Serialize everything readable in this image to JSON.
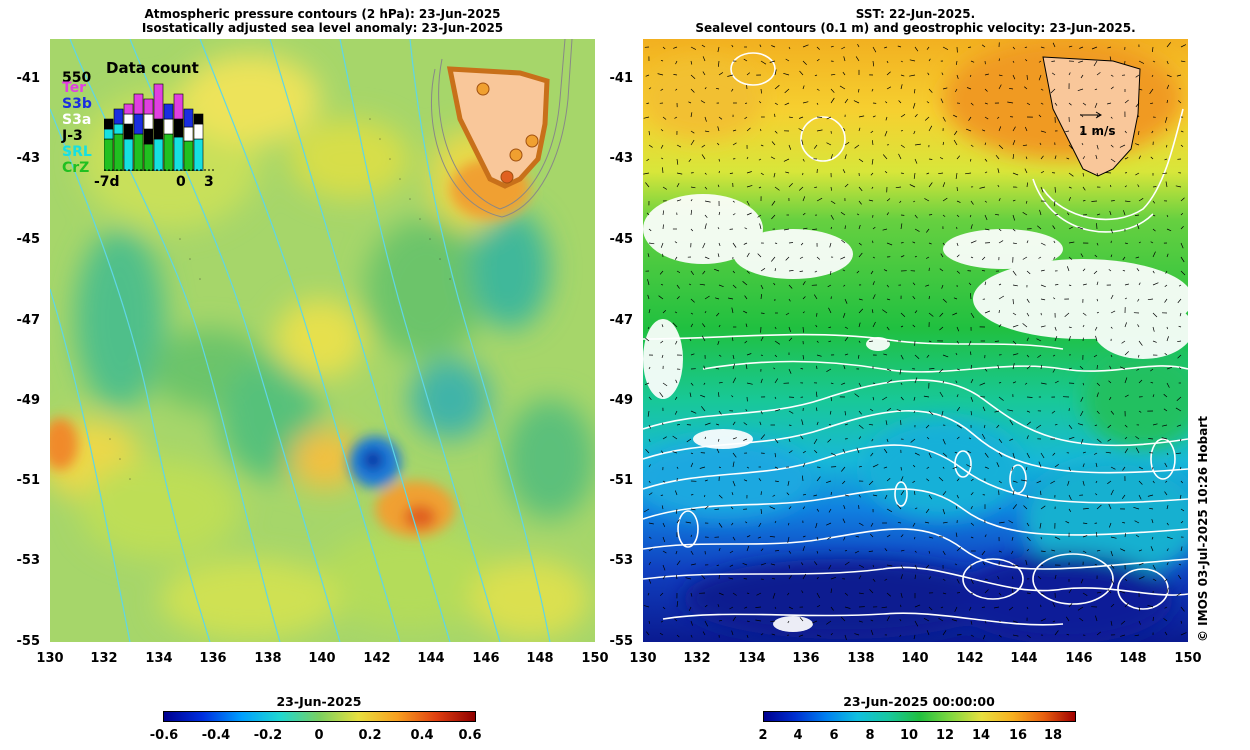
{
  "left_panel": {
    "title_line1": "Atmospheric pressure contours (2 hPa): 23-Jun-2025",
    "title_line2": "Isostatically adjusted sea level anomaly: 23-Jun-2025",
    "y_ticks": [
      "-41",
      "-43",
      "-45",
      "-47",
      "-49",
      "-51",
      "-53",
      "-55"
    ],
    "x_ticks": [
      "130",
      "132",
      "134",
      "136",
      "138",
      "140",
      "142",
      "144",
      "146",
      "148",
      "150"
    ],
    "legend": {
      "title": "Data count",
      "max_label": "550",
      "satellites": [
        {
          "name": "Ter",
          "color": "#e040e0"
        },
        {
          "name": "S3b",
          "color": "#1a2ee0"
        },
        {
          "name": "S3a",
          "color": "#ffffff"
        },
        {
          "name": "J-3",
          "color": "#000000"
        },
        {
          "name": "SRL",
          "color": "#16e0e0"
        },
        {
          "name": "CrZ",
          "color": "#20c020"
        }
      ],
      "x_labels": [
        "-7d",
        "0",
        "3"
      ]
    },
    "colorbar": {
      "title": "23-Jun-2025",
      "ticks": [
        "-0.6",
        "-0.4",
        "-0.2",
        "0",
        "0.2",
        "0.4",
        "0.6"
      ]
    }
  },
  "right_panel": {
    "title_line1": "SST: 22-Jun-2025.",
    "title_line2": "Sealevel contours (0.1 m) and geostrophic velocity: 23-Jun-2025.",
    "y_ticks": [
      "-41",
      "-43",
      "-45",
      "-47",
      "-49",
      "-51",
      "-53",
      "-55"
    ],
    "x_ticks": [
      "130",
      "132",
      "134",
      "136",
      "138",
      "140",
      "142",
      "144",
      "146",
      "148",
      "150"
    ],
    "velocity_scale_label": "1 m/s",
    "colorbar": {
      "title": "23-Jun-2025 00:00:00",
      "ticks": [
        "2",
        "4",
        "6",
        "8",
        "10",
        "12",
        "14",
        "16",
        "18"
      ]
    }
  },
  "credit": "© IMOS 03-Jul-2025 10:26 Hobart",
  "colors": {
    "land": "#f9c79a",
    "contour_cyan": "#5fd6e6",
    "contour_white": "#ffffff"
  }
}
